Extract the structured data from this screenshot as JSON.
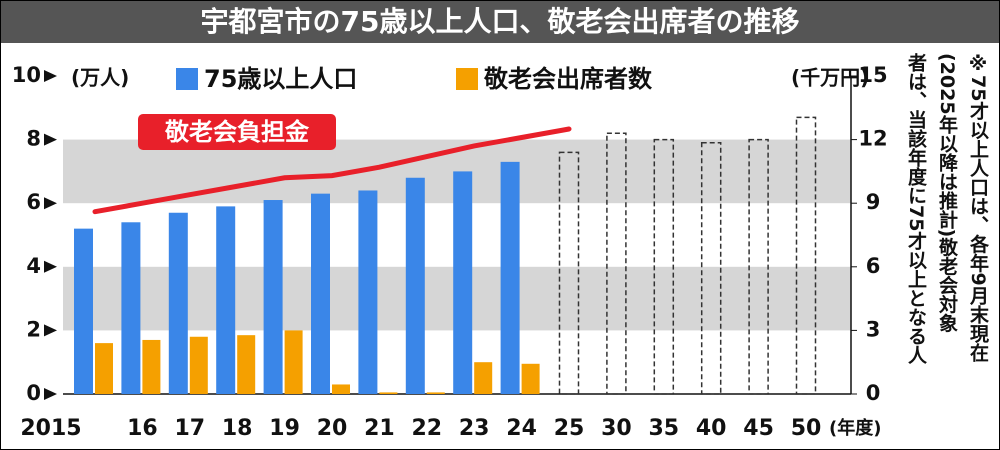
{
  "chart_data": {
    "type": "bar",
    "title": "宇都宮市の75歳以上人口、敬老会出席者の推移",
    "y_label": "(万人)",
    "y2_label": "(千万円)",
    "x_label": "(年度)",
    "categories": [
      "2015",
      "16",
      "17",
      "18",
      "19",
      "20",
      "21",
      "22",
      "23",
      "24",
      "25",
      "30",
      "35",
      "40",
      "45",
      "50"
    ],
    "series": [
      {
        "name": "75歳以上人口",
        "color": "#3a86e8",
        "values": [
          5.2,
          5.4,
          5.7,
          5.9,
          6.1,
          6.3,
          6.4,
          6.8,
          7.0,
          7.3,
          null,
          null,
          null,
          null,
          null,
          null
        ]
      },
      {
        "color": "#333333",
        "style": "dashed",
        "values": [
          null,
          null,
          null,
          null,
          null,
          null,
          null,
          null,
          null,
          null,
          7.6,
          8.2,
          8.0,
          7.9,
          8.0,
          8.7
        ]
      },
      {
        "name": "敬老会出席者数",
        "color": "#f5a000",
        "values": [
          1.6,
          1.7,
          1.8,
          1.85,
          2.0,
          0.3,
          0.05,
          0.05,
          1.0,
          0.95,
          null,
          null,
          null,
          null,
          null,
          null
        ]
      },
      {
        "name": "敬老会負担金",
        "type": "line",
        "axis": "y2",
        "color": "#e8202a",
        "values": [
          8.6,
          9.0,
          9.4,
          9.8,
          10.2,
          10.3,
          10.7,
          11.2,
          11.7,
          12.1,
          12.5,
          null,
          null,
          null,
          null,
          null
        ]
      }
    ],
    "ylim": [
      0,
      10
    ],
    "yticks": [
      0,
      2,
      4,
      6,
      8,
      10
    ],
    "y2lim": [
      0,
      15
    ],
    "y2ticks": [
      0,
      3,
      6,
      9,
      12,
      15
    ],
    "bands": true,
    "note": [
      "※75才以上人口は、各年9月末現在",
      "(2025年以降は推計)敬老会対象",
      "者は、当該年度に75才以上となる人"
    ]
  }
}
